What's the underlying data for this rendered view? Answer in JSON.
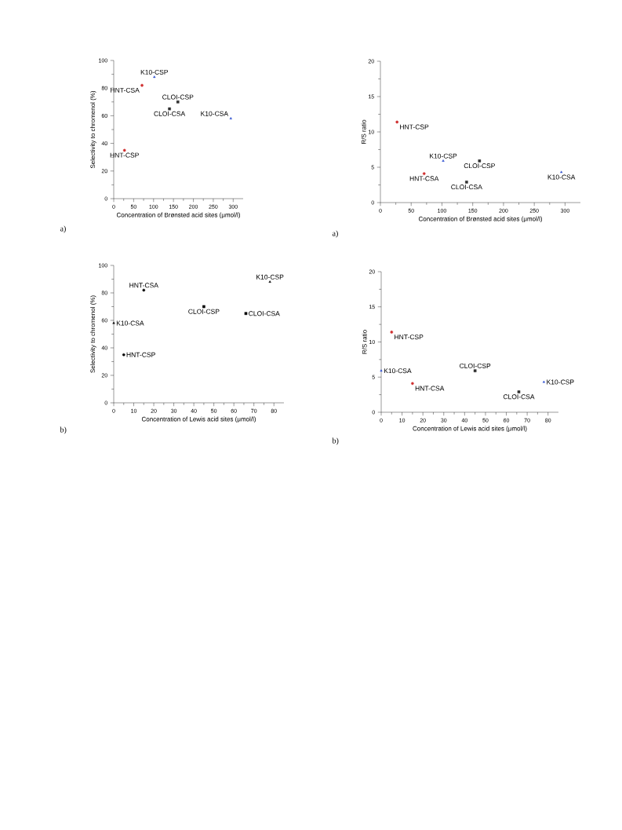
{
  "chart_data": [
    {
      "type": "scatter",
      "xlabel": "Concentration of Brønsted acid sites (μmol/l)",
      "ylabel": "Selectivity to chromenol (%)",
      "xlim": [
        0,
        325
      ],
      "ylim": [
        0,
        100
      ],
      "xticks": [
        0,
        50,
        100,
        150,
        200,
        250,
        300
      ],
      "yticks": [
        0,
        20,
        40,
        60,
        80,
        100
      ],
      "annotations": [
        "a)"
      ],
      "series": [
        {
          "name": "HNT-CSP",
          "color": "#d03030",
          "marker": "circle",
          "x": [
            27
          ],
          "values": [
            35
          ]
        },
        {
          "name": "HNT-CSA",
          "color": "#d03030",
          "marker": "circle",
          "x": [
            71
          ],
          "values": [
            82
          ]
        },
        {
          "name": "K10-CSP",
          "color": "#3050d0",
          "marker": "triangle",
          "x": [
            102
          ],
          "values": [
            88
          ]
        },
        {
          "name": "CLOI-CSA",
          "color": "#303030",
          "marker": "square",
          "x": [
            140
          ],
          "values": [
            65
          ]
        },
        {
          "name": "CLOI-CSP",
          "color": "#303030",
          "marker": "square",
          "x": [
            161
          ],
          "values": [
            70
          ]
        },
        {
          "name": "K10-CSA",
          "color": "#3050d0",
          "marker": "triangle",
          "x": [
            294
          ],
          "values": [
            58
          ]
        }
      ]
    },
    {
      "type": "scatter",
      "xlabel": "Concentration of Brønsted acid sites (μmol/l)",
      "ylabel": "R/S ratio",
      "xlim": [
        0,
        325
      ],
      "ylim": [
        0,
        20
      ],
      "xticks": [
        0,
        50,
        100,
        150,
        200,
        250,
        300
      ],
      "yticks": [
        0,
        5,
        10,
        15,
        20
      ],
      "annotations": [
        "a)"
      ],
      "series": [
        {
          "name": "HNT-CSP",
          "color": "#d03030",
          "marker": "circle",
          "x": [
            27
          ],
          "values": [
            11.4
          ]
        },
        {
          "name": "HNT-CSA",
          "color": "#d03030",
          "marker": "circle",
          "x": [
            71
          ],
          "values": [
            4.1
          ]
        },
        {
          "name": "K10-CSP",
          "color": "#3050d0",
          "marker": "triangle",
          "x": [
            102
          ],
          "values": [
            5.9
          ]
        },
        {
          "name": "CLOI-CSA",
          "color": "#303030",
          "marker": "square",
          "x": [
            140
          ],
          "values": [
            2.9
          ]
        },
        {
          "name": "CLOI-CSP",
          "color": "#303030",
          "marker": "square",
          "x": [
            161
          ],
          "values": [
            5.9
          ]
        },
        {
          "name": "K10-CSA",
          "color": "#3050d0",
          "marker": "triangle",
          "x": [
            294
          ],
          "values": [
            4.3
          ]
        }
      ]
    },
    {
      "type": "scatter",
      "xlabel": "Concentration of Lewis acid sites (μmol/l)",
      "ylabel": "Selectivity to chromenol (%)",
      "xlim": [
        0,
        85
      ],
      "ylim": [
        0,
        100
      ],
      "xticks": [
        0,
        10,
        20,
        30,
        40,
        50,
        60,
        70,
        80
      ],
      "yticks": [
        0,
        20,
        40,
        60,
        80,
        100
      ],
      "annotations": [
        "b)"
      ],
      "series": [
        {
          "name": "K10-CSA",
          "color": "#000000",
          "marker": "triangle",
          "x": [
            0
          ],
          "values": [
            58
          ]
        },
        {
          "name": "HNT-CSP",
          "color": "#000000",
          "marker": "circle",
          "x": [
            5
          ],
          "values": [
            35
          ]
        },
        {
          "name": "HNT-CSA",
          "color": "#000000",
          "marker": "circle",
          "x": [
            15
          ],
          "values": [
            82
          ]
        },
        {
          "name": "CLOI-CSP",
          "color": "#000000",
          "marker": "square",
          "x": [
            45
          ],
          "values": [
            70
          ]
        },
        {
          "name": "CLOI-CSA",
          "color": "#000000",
          "marker": "square",
          "x": [
            66
          ],
          "values": [
            65
          ]
        },
        {
          "name": "K10-CSP",
          "color": "#000000",
          "marker": "triangle",
          "x": [
            78
          ],
          "values": [
            88
          ]
        }
      ]
    },
    {
      "type": "scatter",
      "xlabel": "Concentration of Lewis acid sites (μmol/l)",
      "ylabel": "R/S ratio",
      "xlim": [
        0,
        85
      ],
      "ylim": [
        0,
        20
      ],
      "xticks": [
        0,
        10,
        20,
        30,
        40,
        50,
        60,
        70,
        80
      ],
      "yticks": [
        0,
        5,
        10,
        15,
        20
      ],
      "annotations": [
        "b)"
      ],
      "series": [
        {
          "name": "K10-CSA",
          "color": "#3050d0",
          "marker": "triangle",
          "x": [
            0
          ],
          "values": [
            5.9
          ]
        },
        {
          "name": "HNT-CSP",
          "color": "#d03030",
          "marker": "circle",
          "x": [
            5
          ],
          "values": [
            11.4
          ]
        },
        {
          "name": "HNT-CSA",
          "color": "#d03030",
          "marker": "circle",
          "x": [
            15
          ],
          "values": [
            4.1
          ]
        },
        {
          "name": "CLOI-CSP",
          "color": "#303030",
          "marker": "square",
          "x": [
            45
          ],
          "values": [
            5.9
          ]
        },
        {
          "name": "CLOI-CSA",
          "color": "#303030",
          "marker": "square",
          "x": [
            66
          ],
          "values": [
            2.9
          ]
        },
        {
          "name": "K10-CSP",
          "color": "#3050d0",
          "marker": "triangle",
          "x": [
            78
          ],
          "values": [
            4.3
          ]
        }
      ]
    }
  ]
}
